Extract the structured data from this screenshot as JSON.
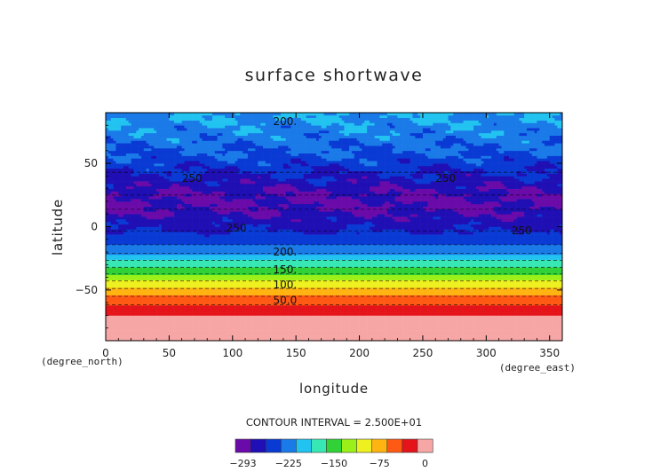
{
  "chart_data": {
    "type": "heatmap",
    "title": "surface shortwave",
    "xlabel": "longitude",
    "ylabel": "latitude",
    "x_unit": "(degree_east)",
    "y_unit": "(degree_north)",
    "xlim": [
      0,
      360
    ],
    "ylim": [
      -90,
      90
    ],
    "x_ticks": [
      0,
      50,
      100,
      150,
      200,
      250,
      300,
      350
    ],
    "y_ticks": [
      -50,
      0,
      50
    ],
    "contour_interval_text": "CONTOUR INTERVAL = 2.500E+01",
    "contour_interval": 25,
    "color_levels": [
      -293,
      -275,
      -250,
      -225,
      -200,
      -175,
      -150,
      -125,
      -100,
      -75,
      -50,
      -25,
      0
    ],
    "colorbar_labels": [
      "−293",
      "−225",
      "−150",
      "−75",
      "0"
    ],
    "colors": [
      "#6a0aa8",
      "#1f0fb4",
      "#0a3ad4",
      "#1a7ae8",
      "#22c3f0",
      "#38e8b4",
      "#30d238",
      "#9af018",
      "#eef020",
      "#ffb412",
      "#ff5a14",
      "#e4141a",
      "#f7a6a6"
    ],
    "zonal_profile": [
      {
        "lat": 90,
        "value": -200
      },
      {
        "lat": 80,
        "value": -205
      },
      {
        "lat": 70,
        "value": -215
      },
      {
        "lat": 60,
        "value": -225
      },
      {
        "lat": 50,
        "value": -238
      },
      {
        "lat": 40,
        "value": -255
      },
      {
        "lat": 30,
        "value": -270
      },
      {
        "lat": 20,
        "value": -280
      },
      {
        "lat": 10,
        "value": -272
      },
      {
        "lat": 0,
        "value": -255
      },
      {
        "lat": -10,
        "value": -240
      },
      {
        "lat": -20,
        "value": -205
      },
      {
        "lat": -30,
        "value": -160
      },
      {
        "lat": -40,
        "value": -112
      },
      {
        "lat": -50,
        "value": -70
      },
      {
        "lat": -60,
        "value": -30
      },
      {
        "lat": -70,
        "value": 0
      },
      {
        "lat": -90,
        "value": 0
      }
    ],
    "contour_labels": [
      {
        "text": "200.",
        "lon": 132,
        "lat": 83
      },
      {
        "text": "250",
        "lon": 60,
        "lat": 38
      },
      {
        "text": "250",
        "lon": 260,
        "lat": 38
      },
      {
        "text": "250",
        "lon": 95,
        "lat": -1
      },
      {
        "text": "250",
        "lon": 320,
        "lat": -3
      },
      {
        "text": "200.",
        "lon": 132,
        "lat": -20
      },
      {
        "text": "150.",
        "lon": 132,
        "lat": -34
      },
      {
        "text": "100.",
        "lon": 132,
        "lat": -46
      },
      {
        "text": "50.0",
        "lon": 132,
        "lat": -58
      }
    ]
  }
}
